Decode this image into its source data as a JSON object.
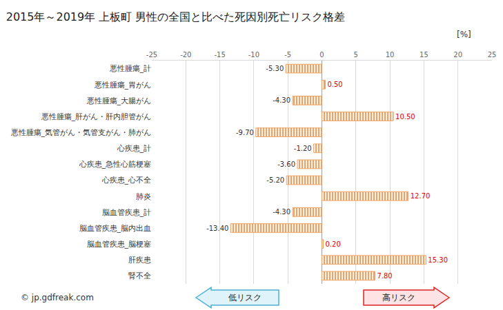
{
  "chart_data": {
    "type": "bar",
    "title": "2015年～2019年 上板町 男性の全国と比べた死因別死亡リスク格差",
    "orientation": "horizontal",
    "categories": [
      "悪性腫瘍_計",
      "悪性腫瘍_胃がん",
      "悪性腫瘍_大腸がん",
      "悪性腫瘍_肝がん・肝内胆管がん",
      "悪性腫瘍_気管がん・気管支がん・肺がん",
      "心疾患_計",
      "心疾患_急性心筋梗塞",
      "心疾患_心不全",
      "肺炎",
      "脳血管疾患_計",
      "脳血管疾患_脳内出血",
      "脳血管疾患_脳梗塞",
      "肝疾患",
      "腎不全"
    ],
    "values": [
      -5.3,
      0.5,
      -4.3,
      10.5,
      -9.7,
      -1.2,
      -3.6,
      -5.2,
      12.7,
      -4.3,
      -13.4,
      0.2,
      15.3,
      7.8
    ],
    "value_labels": [
      "-5.30",
      "0.50",
      "-4.30",
      "10.50",
      "-9.70",
      "-1.20",
      "-3.60",
      "-5.20",
      "12.70",
      "-4.30",
      "-13.40",
      "0.20",
      "15.30",
      "7.80"
    ],
    "color": "#f0a060",
    "xlim": [
      -25,
      25
    ],
    "xticks": [
      -25,
      -20,
      -15,
      -10,
      -5,
      0,
      5,
      10,
      15,
      20,
      25
    ],
    "grid": true,
    "data_labels": true,
    "annotations": {
      "unit": "[%]",
      "low_risk": "低リスク",
      "high_risk": "高リスク",
      "credit": "© jp.gdfreak.com"
    }
  }
}
